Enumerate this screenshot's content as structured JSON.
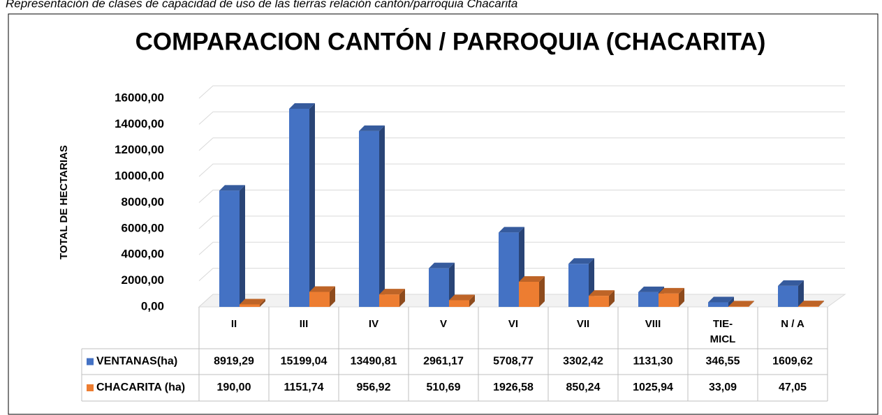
{
  "caption": "Representación de clases de capacidad de uso de las tierras relación cantón/parroquia Chacarita",
  "chart_data": {
    "type": "bar3d",
    "title": "COMPARACION CANTÓN / PARROQUIA (CHACARITA)",
    "y_label": "TOTAL DE HECTARIAS",
    "categories": [
      "II",
      "III",
      "IV",
      "V",
      "VI",
      "VII",
      "VIII",
      "TIE-MICL",
      "N / A"
    ],
    "series": [
      {
        "name": "VENTANAS(ha)",
        "color": "#4472c4",
        "values": [
          8919.29,
          15199.04,
          13490.81,
          2961.17,
          5708.77,
          3302.42,
          1131.3,
          346.55,
          1609.62
        ],
        "value_labels": [
          "8919,29",
          "15199,04",
          "13490,81",
          "2961,17",
          "5708,77",
          "3302,42",
          "1131,30",
          "346,55",
          "1609,62"
        ]
      },
      {
        "name": "CHACARITA (ha)",
        "color": "#ed7d31",
        "values": [
          190.0,
          1151.74,
          956.92,
          510.69,
          1926.58,
          850.24,
          1025.94,
          33.09,
          47.05
        ],
        "value_labels": [
          "190,00",
          "1151,74",
          "956,92",
          "510,69",
          "1926,58",
          "850,24",
          "1025,94",
          "33,09",
          "47,05"
        ]
      }
    ],
    "ylim": [
      0,
      16000
    ],
    "yticks": [
      {
        "value": 0,
        "label": "0,00"
      },
      {
        "value": 2000,
        "label": "2000,00"
      },
      {
        "value": 4000,
        "label": "4000,00"
      },
      {
        "value": 6000,
        "label": "6000,00"
      },
      {
        "value": 8000,
        "label": "8000,00"
      },
      {
        "value": 10000,
        "label": "10000,00"
      },
      {
        "value": 12000,
        "label": "12000,00"
      },
      {
        "value": 14000,
        "label": "14000,00"
      },
      {
        "value": 16000,
        "label": "16000,00"
      }
    ],
    "grid": true,
    "data_table": true
  }
}
